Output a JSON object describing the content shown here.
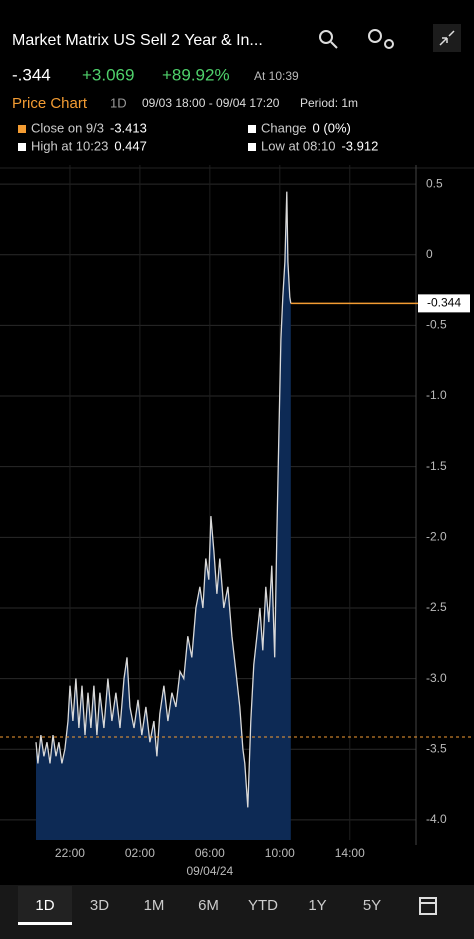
{
  "header": {
    "title": "Market Matrix US Sell 2 Year & In...",
    "last": "-.344",
    "change": "+3.069",
    "change_pct": "+89.92%",
    "time": "At 10:39"
  },
  "subheader": {
    "section": "Price Chart",
    "range": "1D",
    "dates": "09/03 18:00 - 09/04 17:20",
    "period": "Period: 1m"
  },
  "legend": [
    {
      "label": "Close on 9/3",
      "value": "-3.413",
      "color": "#f39c33"
    },
    {
      "label": "Change",
      "value": "0 (0%)",
      "color": "#ffffff"
    },
    {
      "label": "High at 10:23",
      "value": "0.447",
      "color": "#ffffff"
    },
    {
      "label": "Low at 08:10",
      "value": "-3.912",
      "color": "#ffffff"
    }
  ],
  "chart_data": {
    "type": "area",
    "line_color": "#d9d9d9",
    "fill_color": "#0d2a55",
    "x": [
      20.06,
      20.17,
      20.34,
      20.51,
      20.69,
      20.86,
      21.03,
      21.2,
      21.37,
      21.54,
      21.71,
      21.89,
      22.0,
      22.17,
      22.34,
      22.51,
      22.69,
      22.86,
      23.03,
      23.2,
      23.37,
      23.54,
      23.71,
      23.94,
      24.17,
      24.4,
      24.63,
      24.86,
      25.09,
      25.26,
      25.43,
      25.66,
      25.89,
      26.11,
      26.34,
      26.57,
      26.8,
      26.97,
      27.14,
      27.37,
      27.6,
      27.83,
      28.06,
      28.29,
      28.51,
      28.74,
      28.97,
      29.2,
      29.43,
      29.6,
      29.77,
      29.94,
      30.06,
      30.23,
      30.4,
      30.57,
      30.8,
      31.03,
      31.26,
      31.49,
      31.71,
      31.89,
      32.0,
      32.17,
      32.34,
      32.51,
      32.69,
      32.86,
      33.03,
      33.2,
      33.37,
      33.54,
      33.71,
      33.83,
      33.94,
      34.06,
      34.17,
      34.29,
      34.4,
      34.46,
      34.57,
      34.63
    ],
    "series": [
      {
        "values": [
          -3.45,
          -3.6,
          -3.4,
          -3.55,
          -3.45,
          -3.6,
          -3.4,
          -3.55,
          -3.45,
          -3.6,
          -3.5,
          -3.3,
          -3.05,
          -3.3,
          -3.0,
          -3.35,
          -3.05,
          -3.4,
          -3.1,
          -3.35,
          -3.05,
          -3.4,
          -3.1,
          -3.35,
          -3.0,
          -3.3,
          -3.1,
          -3.35,
          -3.0,
          -2.85,
          -3.2,
          -3.35,
          -3.15,
          -3.4,
          -3.2,
          -3.45,
          -3.3,
          -3.55,
          -3.25,
          -3.05,
          -3.3,
          -3.1,
          -3.2,
          -2.95,
          -3.0,
          -2.7,
          -2.85,
          -2.5,
          -2.35,
          -2.5,
          -2.15,
          -2.3,
          -1.85,
          -2.1,
          -2.4,
          -2.15,
          -2.5,
          -2.35,
          -2.7,
          -2.95,
          -3.2,
          -3.5,
          -3.6,
          -3.912,
          -3.3,
          -2.9,
          -2.7,
          -2.5,
          -2.8,
          -2.35,
          -2.6,
          -2.2,
          -2.85,
          -2.0,
          -1.3,
          -0.6,
          -0.3,
          -0.05,
          0.447,
          -0.05,
          -0.3,
          -0.344
        ]
      }
    ],
    "xlim": [
      18,
      41.33
    ],
    "xticks": [
      {
        "value": 22,
        "label": "22:00"
      },
      {
        "value": 26,
        "label": "02:00"
      },
      {
        "value": 30,
        "label": "06:00"
      },
      {
        "value": 34,
        "label": "10:00"
      },
      {
        "value": 38,
        "label": "14:00"
      }
    ],
    "x_sublabel": "09/04/24",
    "ylim": [
      -4.1,
      0.6
    ],
    "yticks": [
      0.5,
      0,
      -0.5,
      {
        "value": -1,
        "label": "-1.0"
      },
      -1.5,
      {
        "value": -2,
        "label": "-2.0"
      },
      -2.5,
      {
        "value": -3,
        "label": "-3.0"
      },
      -3.5,
      {
        "value": -4,
        "label": "-4.0"
      }
    ],
    "grid": true,
    "prev_close": -3.413,
    "prev_close_color": "#f39c33",
    "last_value": -0.344,
    "last_color": "#f39c33"
  },
  "tabs": [
    "1D",
    "3D",
    "1M",
    "6M",
    "YTD",
    "1Y",
    "5Y"
  ],
  "selected_tab": 0
}
